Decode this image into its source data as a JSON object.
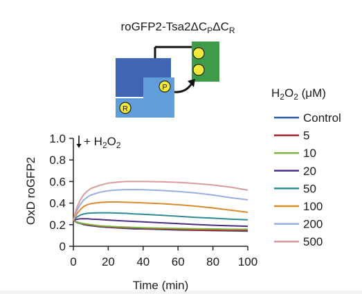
{
  "figure": {
    "construct_label": "roGFP2-Tsa2ΔCPΔCR",
    "construct_main": "roGFP2-Tsa2ΔC",
    "construct_sub1": "P",
    "construct_mid": "ΔC",
    "construct_sub2": "R",
    "diagram": {
      "badge_P": "P",
      "badge_R": "R"
    },
    "treatment_label": "+ H2O2",
    "treatment_prefix": "+ H",
    "treatment_sub1": "2",
    "treatment_mid": "O",
    "treatment_sub2": "2",
    "legend_title": "H2O2 (μM)",
    "legend_title_h": "H",
    "legend_title_sub1": "2",
    "legend_title_o": "O",
    "legend_title_sub2": "2",
    "legend_title_unit": " (μM)"
  },
  "colors": {
    "dark_blue": "#3f66b0",
    "light_blue": "#5f9ed8",
    "green": "#3f9a4a",
    "yellow": "#f5ea3a"
  },
  "chart_data": {
    "type": "line",
    "xlabel": "Time (min)",
    "ylabel": "OxD roGFP2",
    "xlim": [
      0,
      100
    ],
    "ylim": [
      0,
      1.0
    ],
    "xticks": [
      "0",
      "20",
      "40",
      "60",
      "80",
      "100"
    ],
    "yticks": [
      "0",
      "0.2",
      "0.4",
      "0.6",
      "0.8",
      "1.0"
    ],
    "legend_position": "right",
    "x": [
      0,
      2,
      4,
      6,
      8,
      10,
      15,
      20,
      25,
      30,
      35,
      40,
      50,
      60,
      70,
      80,
      90,
      100
    ],
    "series": [
      {
        "name": "Control",
        "color": "#2f5aa6",
        "values": [
          0.24,
          0.22,
          0.21,
          0.2,
          0.195,
          0.19,
          0.18,
          0.175,
          0.17,
          0.165,
          0.16,
          0.16,
          0.155,
          0.15,
          0.148,
          0.145,
          0.142,
          0.14
        ]
      },
      {
        "name": "5",
        "color": "#a5262c",
        "values": [
          0.24,
          0.225,
          0.215,
          0.205,
          0.2,
          0.195,
          0.185,
          0.18,
          0.175,
          0.17,
          0.168,
          0.165,
          0.16,
          0.155,
          0.15,
          0.148,
          0.146,
          0.145
        ]
      },
      {
        "name": "10",
        "color": "#7fb241",
        "values": [
          0.24,
          0.225,
          0.215,
          0.21,
          0.205,
          0.2,
          0.19,
          0.185,
          0.18,
          0.178,
          0.175,
          0.172,
          0.168,
          0.165,
          0.162,
          0.16,
          0.158,
          0.157
        ]
      },
      {
        "name": "20",
        "color": "#4a2e86",
        "values": [
          0.24,
          0.25,
          0.255,
          0.255,
          0.255,
          0.252,
          0.248,
          0.243,
          0.238,
          0.234,
          0.23,
          0.226,
          0.218,
          0.21,
          0.202,
          0.195,
          0.19,
          0.185
        ]
      },
      {
        "name": "50",
        "color": "#2e8a9b",
        "values": [
          0.24,
          0.27,
          0.29,
          0.3,
          0.305,
          0.308,
          0.31,
          0.31,
          0.308,
          0.305,
          0.3,
          0.297,
          0.288,
          0.278,
          0.268,
          0.26,
          0.252,
          0.245
        ]
      },
      {
        "name": "100",
        "color": "#d98a2b",
        "values": [
          0.24,
          0.3,
          0.34,
          0.37,
          0.385,
          0.395,
          0.405,
          0.41,
          0.41,
          0.408,
          0.405,
          0.402,
          0.395,
          0.385,
          0.372,
          0.355,
          0.335,
          0.315
        ]
      },
      {
        "name": "200",
        "color": "#98aee0",
        "values": [
          0.24,
          0.33,
          0.39,
          0.43,
          0.455,
          0.475,
          0.5,
          0.515,
          0.522,
          0.525,
          0.525,
          0.524,
          0.518,
          0.508,
          0.494,
          0.475,
          0.45,
          0.43
        ]
      },
      {
        "name": "500",
        "color": "#d99a9c",
        "values": [
          0.24,
          0.36,
          0.43,
          0.48,
          0.51,
          0.535,
          0.565,
          0.585,
          0.595,
          0.6,
          0.6,
          0.6,
          0.598,
          0.592,
          0.582,
          0.568,
          0.548,
          0.52
        ]
      }
    ]
  }
}
